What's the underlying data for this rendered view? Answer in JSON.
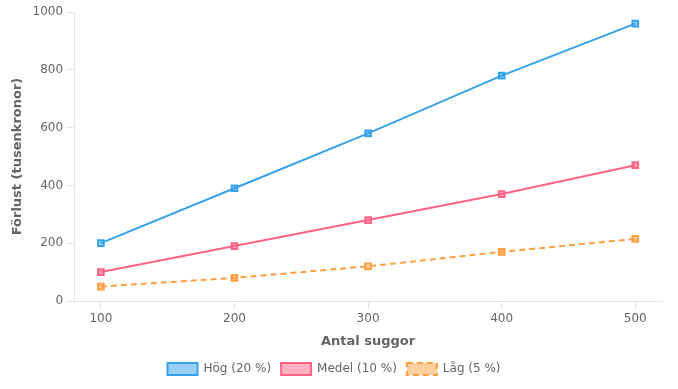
{
  "chart_data": {
    "type": "line",
    "x": [
      100,
      200,
      300,
      400,
      500
    ],
    "series": [
      {
        "name": "Hög (20 %)",
        "values": [
          200,
          390,
          580,
          780,
          960
        ],
        "line_style": "solid",
        "marker": "square"
      },
      {
        "name": "Medel (10 %)",
        "values": [
          100,
          190,
          280,
          370,
          470
        ],
        "line_style": "solid",
        "marker": "square"
      },
      {
        "name": "Låg (5 %)",
        "values": [
          50,
          80,
          120,
          170,
          215
        ],
        "line_style": "dashed",
        "marker": "square"
      }
    ],
    "xlabel": "Antal suggor",
    "ylabel": "Förlust (tusenkronor)",
    "xlim": [
      80,
      520
    ],
    "xticks": [
      100,
      200,
      300,
      400,
      500
    ],
    "ylim": [
      0,
      1000
    ],
    "yticks": [
      0,
      200,
      400,
      600,
      800,
      1000
    ],
    "grid": false,
    "legend": "bottom"
  }
}
